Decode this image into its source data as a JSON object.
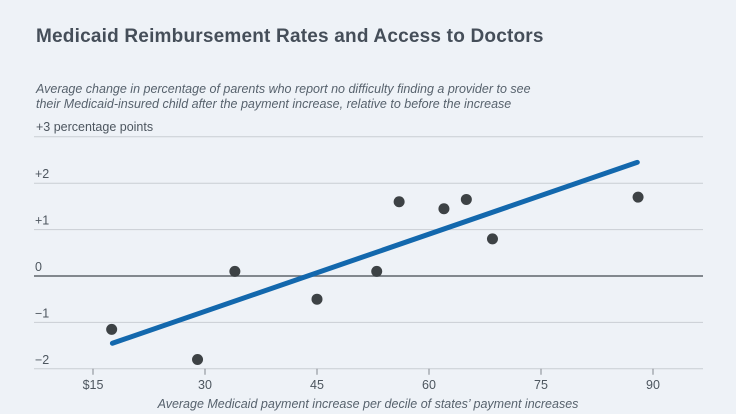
{
  "header": {
    "title": "Medicaid Reimbursement Rates and Access to Doctors",
    "subtitle_line1": "Average change in percentage of parents who report no difficulty finding a provider to see",
    "subtitle_line2": "their Medicaid-insured child after the payment increase, relative to before the increase"
  },
  "chart_data": {
    "type": "scatter",
    "title": "Medicaid Reimbursement Rates and Access to Doctors",
    "subtitle": "Average change in percentage of parents who report no difficulty finding a provider to see their Medicaid-insured child after the payment increase, relative to before the increase",
    "xlabel": "Average Medicaid payment increase per decile of states’ payment increases",
    "ylabel": "percentage points",
    "xlim": [
      7,
      97
    ],
    "ylim": [
      -2,
      3
    ],
    "grid": "on",
    "legend_position": "none",
    "y_axis": {
      "unit_label": "+3 percentage points",
      "gridline_values": [
        3,
        2,
        1,
        0,
        -1,
        -2
      ],
      "tick_labels": [
        {
          "value": 2,
          "label": "+2"
        },
        {
          "value": 1,
          "label": "+1"
        },
        {
          "value": 0,
          "label": "0"
        },
        {
          "value": -1,
          "label": "−1"
        },
        {
          "value": -2,
          "label": "−2"
        }
      ],
      "zero_line_emphasized": true
    },
    "x_axis": {
      "tick_values": [
        15,
        30,
        45,
        60,
        75,
        90
      ],
      "tick_labels": [
        "$15",
        "30",
        "45",
        "60",
        "75",
        "90"
      ]
    },
    "points": [
      {
        "x": 17.5,
        "y": -1.15
      },
      {
        "x": 29,
        "y": -1.8
      },
      {
        "x": 34,
        "y": 0.1
      },
      {
        "x": 45,
        "y": -0.5
      },
      {
        "x": 53,
        "y": 0.1
      },
      {
        "x": 56,
        "y": 1.6
      },
      {
        "x": 62,
        "y": 1.45
      },
      {
        "x": 65,
        "y": 1.65
      },
      {
        "x": 68.5,
        "y": 0.8
      },
      {
        "x": 88,
        "y": 1.7
      }
    ],
    "trendline": {
      "x1": 17.6,
      "y1": -1.45,
      "x2": 87.9,
      "y2": 2.45
    },
    "colors": {
      "background": "#eef2f7",
      "title_text": "#454e59",
      "subtitle_text": "#57626d",
      "axis_text": "#4d565f",
      "gridline": "#c9ced4",
      "zero_line": "#5f656c",
      "tick_mark": "#82888f",
      "point": "#3d4245",
      "trend_line": "#1368ad"
    }
  }
}
